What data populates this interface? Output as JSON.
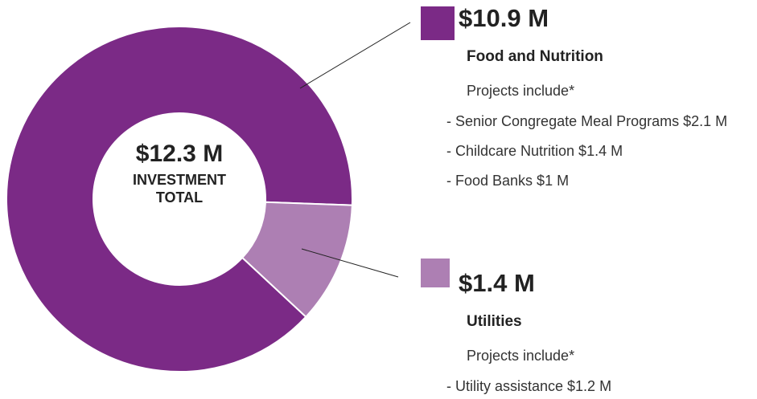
{
  "chart_data": {
    "type": "pie",
    "donut": true,
    "center_label": "$12.3 M",
    "center_caption": "INVESTMENT TOTAL",
    "categories": [
      "Food and Nutrition",
      "Utilities"
    ],
    "values": [
      10.9,
      1.4
    ],
    "value_labels": [
      "$10.9 M",
      "$1.4 M"
    ],
    "colors": [
      "#7b2a86",
      "#ad7fb3"
    ],
    "details": [
      {
        "intro": "Projects include*",
        "items": [
          "- Senior Congregate Meal Programs $2.1 M",
          "- Childcare Nutrition $1.4 M",
          "- Food Banks $1 M"
        ]
      },
      {
        "intro": "Projects include*",
        "items": [
          "- Utility assistance $1.2 M"
        ]
      }
    ]
  }
}
